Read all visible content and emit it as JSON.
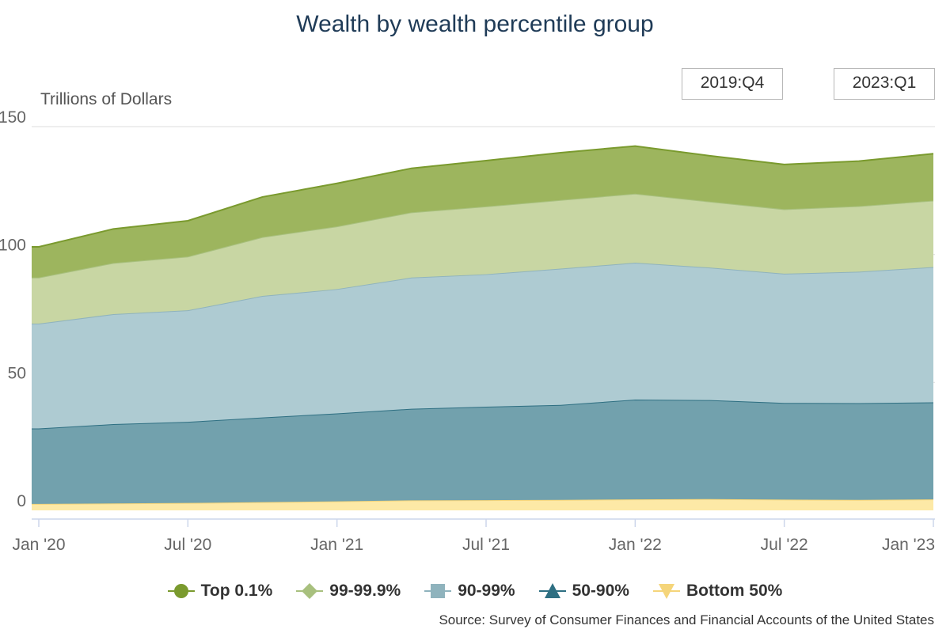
{
  "title": "Wealth by wealth percentile group",
  "range_selector": {
    "start": "2019:Q4",
    "end": "2023:Q1"
  },
  "source": "Source: Survey of Consumer Finances and Financial Accounts of the United States",
  "chart_data": {
    "type": "area",
    "stacked": true,
    "ylabel": "Trillions of Dollars",
    "ylim": [
      0,
      150
    ],
    "yticks": [
      0,
      50,
      100,
      150
    ],
    "x": [
      "2019:Q4",
      "2020:Q1",
      "2020:Q2",
      "2020:Q3",
      "2020:Q4",
      "2021:Q1",
      "2021:Q2",
      "2021:Q3",
      "2021:Q4",
      "2022:Q1",
      "2022:Q2",
      "2022:Q3",
      "2022:Q4",
      "2023:Q1"
    ],
    "xticks": [
      {
        "x": "2020:Q1",
        "label": "Jan '20"
      },
      {
        "x": "2020:Q3",
        "label": "Jul '20"
      },
      {
        "x": "2021:Q1",
        "label": "Jan '21"
      },
      {
        "x": "2021:Q3",
        "label": "Jul '21"
      },
      {
        "x": "2022:Q1",
        "label": "Jan '22"
      },
      {
        "x": "2022:Q3",
        "label": "Jul '22"
      },
      {
        "x": "2023:Q1",
        "label": "Jan '23"
      }
    ],
    "grid": true,
    "legend_position": "bottom",
    "series": [
      {
        "name": "Bottom 50%",
        "color": "#f5d57a",
        "fill": "#fde9a6",
        "marker": "triangle-down",
        "values": [
          2.5,
          2.5,
          2.7,
          2.9,
          3.2,
          3.5,
          3.9,
          4.0,
          4.1,
          4.3,
          4.4,
          4.2,
          4.1,
          4.3
        ]
      },
      {
        "name": "50-90%",
        "color": "#2e6f82",
        "fill": "#72a1ad",
        "marker": "triangle",
        "values": [
          29.5,
          29.5,
          31.0,
          31.7,
          33.1,
          34.4,
          35.8,
          36.5,
          37.1,
          39.0,
          38.7,
          37.8,
          37.8,
          37.9
        ]
      },
      {
        "name": "90-99%",
        "color": "#8fb3bd",
        "fill": "#aecbd2",
        "marker": "square",
        "values": [
          41.0,
          41.0,
          43.0,
          43.6,
          47.5,
          48.6,
          51.3,
          51.8,
          53.3,
          53.5,
          51.8,
          50.5,
          51.4,
          52.9
        ]
      },
      {
        "name": "99-99.9%",
        "color": "#a8c07e",
        "fill": "#c8d6a3",
        "marker": "diamond",
        "values": [
          18.0,
          18.0,
          20.0,
          21.0,
          23.0,
          24.5,
          25.5,
          26.5,
          26.8,
          27.0,
          25.8,
          25.2,
          25.6,
          26.0
        ]
      },
      {
        "name": "Top 0.1%",
        "color": "#7a9a2e",
        "fill": "#9db55e",
        "marker": "circle",
        "values": [
          12.0,
          12.0,
          13.3,
          14.0,
          15.7,
          16.8,
          17.2,
          17.9,
          18.5,
          18.6,
          17.9,
          17.5,
          17.6,
          18.3
        ]
      }
    ]
  }
}
